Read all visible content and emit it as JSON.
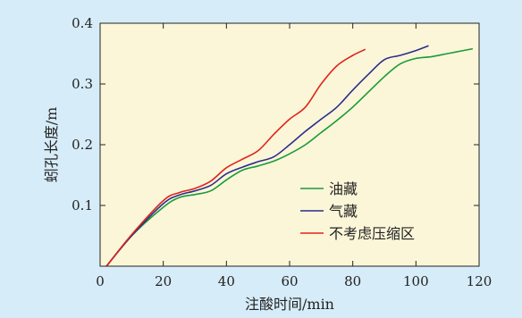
{
  "chart_data": {
    "type": "line",
    "title": "",
    "xlabel": "注酸时间/min",
    "ylabel": "蚓孔长度/m",
    "xlim": [
      0,
      120
    ],
    "ylim": [
      0,
      0.4
    ],
    "xticks": [
      0,
      20,
      40,
      60,
      80,
      100,
      120
    ],
    "yticks": [
      0.1,
      0.2,
      0.3,
      0.4
    ],
    "xtick_labels": [
      "0",
      "20",
      "40",
      "60",
      "80",
      "100",
      "120"
    ],
    "ytick_labels": [
      "0.1",
      "0.2",
      "0.3",
      "0.4"
    ],
    "grid": false,
    "legend_position": "center-right",
    "plot_background": "#fbf6d8",
    "series": [
      {
        "name": "油藏",
        "color": "#1a9a3a",
        "x": [
          2,
          10,
          20,
          25,
          30,
          35,
          40,
          45,
          50,
          55,
          60,
          65,
          70,
          75,
          80,
          85,
          90,
          95,
          100,
          105,
          110,
          115,
          118
        ],
        "y": [
          0.0,
          0.05,
          0.097,
          0.113,
          0.118,
          0.124,
          0.142,
          0.158,
          0.165,
          0.173,
          0.185,
          0.2,
          0.22,
          0.24,
          0.262,
          0.287,
          0.312,
          0.333,
          0.342,
          0.345,
          0.35,
          0.355,
          0.358
        ]
      },
      {
        "name": "气藏",
        "color": "#2a2f8c",
        "x": [
          2,
          10,
          20,
          25,
          30,
          35,
          40,
          45,
          50,
          55,
          60,
          65,
          70,
          75,
          80,
          85,
          90,
          95,
          100,
          104
        ],
        "y": [
          0.0,
          0.05,
          0.103,
          0.117,
          0.124,
          0.133,
          0.152,
          0.163,
          0.172,
          0.18,
          0.2,
          0.222,
          0.242,
          0.262,
          0.29,
          0.316,
          0.34,
          0.347,
          0.355,
          0.363
        ]
      },
      {
        "name": "不考虑压缩区",
        "color": "#e0241c",
        "x": [
          2,
          10,
          20,
          25,
          30,
          35,
          40,
          45,
          50,
          55,
          60,
          65,
          70,
          75,
          80,
          84
        ],
        "y": [
          0.0,
          0.052,
          0.108,
          0.121,
          0.128,
          0.14,
          0.162,
          0.176,
          0.19,
          0.217,
          0.242,
          0.262,
          0.3,
          0.33,
          0.347,
          0.357
        ]
      }
    ]
  }
}
